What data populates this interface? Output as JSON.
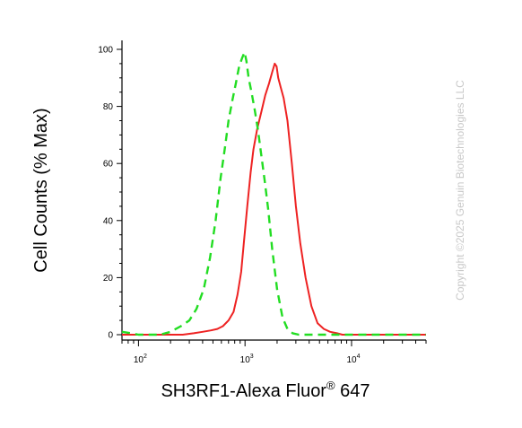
{
  "chart_data": {
    "type": "line",
    "title": "",
    "xlabel": "SH3RF1-Alexa Fluor",
    "xlabel_superscript": "®",
    "xlabel_suffix": " 647",
    "ylabel": "Cell Counts (% Max)",
    "xscale": "log",
    "xlim": [
      70,
      50000
    ],
    "ylim": [
      0,
      105
    ],
    "x_ticks": [
      {
        "value": 100,
        "base": "10",
        "exp": "2"
      },
      {
        "value": 1000,
        "base": "10",
        "exp": "3"
      },
      {
        "value": 10000,
        "base": "10",
        "exp": "4"
      }
    ],
    "y_ticks": [
      0,
      20,
      40,
      60,
      80,
      100
    ],
    "grid": false,
    "legend": "none",
    "series": [
      {
        "color": "#ee2222",
        "style": "solid",
        "x": [
          70,
          90,
          120,
          160,
          200,
          260,
          330,
          400,
          480,
          550,
          620,
          700,
          780,
          850,
          920,
          980,
          1050,
          1130,
          1200,
          1300,
          1420,
          1550,
          1680,
          1800,
          1900,
          1980,
          2050,
          2150,
          2300,
          2500,
          2750,
          3000,
          3300,
          3700,
          4200,
          4800,
          5500,
          6300,
          7300,
          8200,
          9000,
          12000,
          20000,
          35000,
          50000
        ],
        "y": [
          0,
          0,
          0,
          0,
          0,
          0,
          0.5,
          1,
          1.5,
          2,
          3,
          5,
          8,
          14,
          22,
          33,
          45,
          57,
          65,
          72,
          78,
          84,
          88,
          92,
          95,
          94,
          90,
          87,
          83,
          75,
          60,
          45,
          32,
          20,
          10,
          4,
          2,
          1,
          0.5,
          0,
          0,
          0,
          0,
          0,
          0
        ]
      },
      {
        "color": "#22dd22",
        "style": "dashed",
        "x": [
          70,
          85,
          100,
          125,
          160,
          200,
          250,
          300,
          350,
          410,
          470,
          530,
          590,
          650,
          700,
          760,
          820,
          880,
          940,
          990,
          1030,
          1080,
          1150,
          1230,
          1320,
          1420,
          1530,
          1650,
          1800,
          2000,
          2250,
          2500,
          2800,
          3200,
          3700,
          4500,
          6000,
          10000,
          20000,
          50000
        ],
        "y": [
          1,
          0.5,
          0,
          0,
          0,
          1,
          3,
          5,
          9,
          16,
          27,
          40,
          55,
          66,
          75,
          82,
          88,
          94,
          97,
          99,
          96,
          90,
          85,
          79,
          72,
          63,
          54,
          44,
          30,
          16,
          6,
          2,
          0.5,
          0,
          0,
          0,
          0,
          0,
          0,
          0
        ]
      }
    ]
  },
  "watermark": "Copyright ©2025 Genuin Biotechnologies LLC"
}
